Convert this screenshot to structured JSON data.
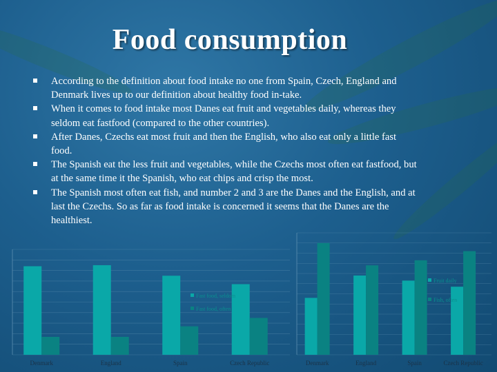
{
  "slide": {
    "title": "Food consumption",
    "bullets": [
      "According to the definition about food intake no one from Spain, Czech, England and Denmark lives up to our definition about healthy food in-take.",
      "When it comes to food intake most Danes eat fruit and vegetables daily, whereas they seldom eat fastfood (compared to the other countries).",
      "After Danes, Czechs eat most fruit and then the English, who also eat only a little fast food.",
      "The Spanish eat the less fruit and vegetables, while the Czechs most often eat fastfood, but at the same time it the Spanish, who eat chips and crisp the most.",
      "The Spanish most often eat fish, and number 2 and 3 are the Danes and the English, and at last the Czechs. So as far as food intake is concerned it seems that the Danes are the healthiest."
    ]
  },
  "colors": {
    "series_primary": "#0aa8a8",
    "series_secondary": "#0a8282",
    "grid": "#5d8fb0",
    "axis_label": "#1a3247",
    "legend_text": "#0a8f8f"
  },
  "chart_data": [
    {
      "type": "bar",
      "categories": [
        "Denmark",
        "England",
        "Spain",
        "Czech Republic"
      ],
      "series": [
        {
          "name": "Fast food, seldom",
          "values": [
            84,
            85,
            75,
            67
          ]
        },
        {
          "name": "Fast food, often",
          "values": [
            17,
            17,
            27,
            35
          ]
        }
      ],
      "legend_position": "center-right",
      "grid": true
    },
    {
      "type": "bar",
      "categories": [
        "Denmark",
        "England",
        "Spain",
        "Czech Republic"
      ],
      "series": [
        {
          "name": "Fruit daily",
          "values": [
            56,
            78,
            73,
            67
          ]
        },
        {
          "name": "Fish, often",
          "values": [
            110,
            88,
            93,
            102
          ]
        }
      ],
      "legend_position": "right",
      "grid": true
    }
  ]
}
